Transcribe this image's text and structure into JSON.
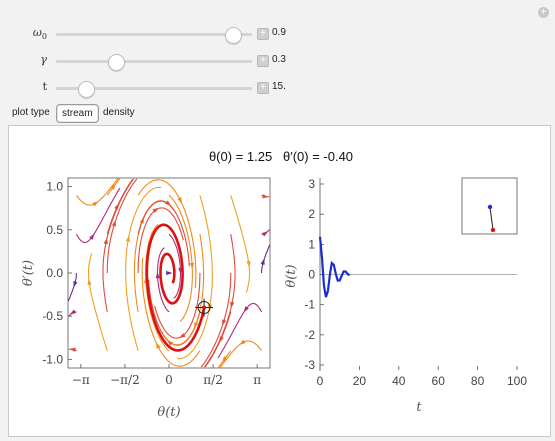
{
  "controls": {
    "omega0": {
      "label": "ω0",
      "value_text": "0.9",
      "fraction": 0.9
    },
    "gamma": {
      "label": "γ",
      "value_text": "0.3",
      "fraction": 0.3
    },
    "t": {
      "label": "t",
      "value_text": "15.",
      "fraction": 0.15
    }
  },
  "plot_type": {
    "label": "plot type",
    "options": [
      "stream",
      "density"
    ],
    "selected": "stream"
  },
  "output_title": "θ(0) = 1.25   θ′(0) = -0.40",
  "chart_data": [
    {
      "type": "scatter",
      "subtype": "stream-plot",
      "title": "",
      "xlabel": "θ(t)",
      "ylabel": "θ′(t)",
      "xlim": [
        -3.6,
        3.6
      ],
      "ylim": [
        -1.1,
        1.1
      ],
      "x_tick_labels": [
        "−π",
        "−π/2",
        "0",
        "π/2",
        "π"
      ],
      "x_ticks": [
        -3.1416,
        -1.5708,
        0,
        1.5708,
        3.1416
      ],
      "y_tick_labels": [
        "-1.0",
        "-0.5",
        "0.0",
        "0.5",
        "1.0"
      ],
      "y_ticks": [
        -1.0,
        -0.5,
        0.0,
        0.5,
        1.0
      ],
      "initial_point": {
        "theta": 1.25,
        "theta_prime": -0.4
      },
      "colors": {
        "trajectory": "#dd1111",
        "stream_palette": [
          "#6a2a9a",
          "#b02a7a",
          "#e04a3a",
          "#f08a1a",
          "#f0a020"
        ]
      }
    },
    {
      "type": "line",
      "title": "",
      "xlabel": "t",
      "ylabel": "θ(t)",
      "xlim": [
        0,
        100
      ],
      "ylim": [
        -3.1,
        3.1
      ],
      "x_tick_labels": [
        "0",
        "20",
        "40",
        "60",
        "80",
        "100"
      ],
      "x_ticks": [
        0,
        20,
        40,
        60,
        80,
        100
      ],
      "y_tick_labels": [
        "-3",
        "-2",
        "-1",
        "0",
        "1",
        "2",
        "3"
      ],
      "y_ticks": [
        -3,
        -2,
        -1,
        0,
        1,
        2,
        3
      ],
      "series": [
        {
          "color": "#1a2fd0",
          "x": [
            0,
            1,
            2,
            3,
            4,
            5,
            6,
            7,
            8,
            9,
            10,
            11,
            12,
            13,
            14,
            15
          ],
          "y": [
            1.25,
            0.55,
            -0.35,
            -0.75,
            -0.55,
            0.0,
            0.38,
            0.32,
            0.02,
            -0.2,
            -0.2,
            -0.04,
            0.1,
            0.1,
            0.02,
            -0.03
          ]
        }
      ],
      "inset": {
        "description_colors": {
          "top": "#1a2fd0",
          "bottom": "#dd1111"
        }
      }
    }
  ]
}
